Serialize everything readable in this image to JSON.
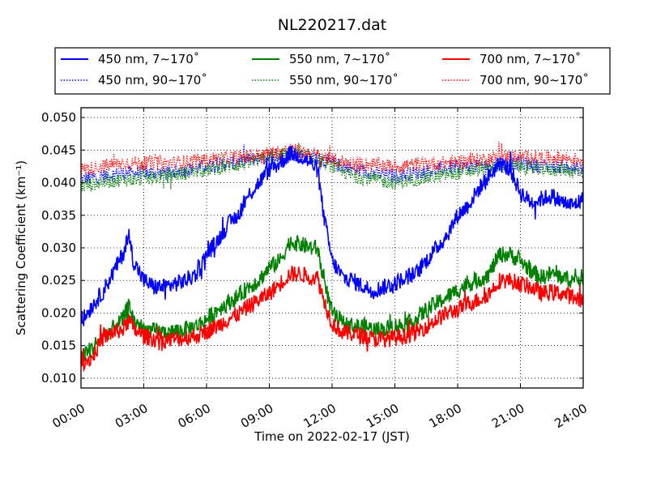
{
  "chart_data": {
    "type": "line",
    "title": "NL220217.dat",
    "xlabel": "Time on 2022-02-17 (JST)",
    "ylabel": "Scattering Coefficient (km⁻¹)",
    "x_unit": "hours",
    "xlim": [
      0,
      24
    ],
    "ylim": [
      0.0085,
      0.0515
    ],
    "x_ticks": [
      "00:00",
      "03:00",
      "06:00",
      "09:00",
      "12:00",
      "15:00",
      "18:00",
      "21:00",
      "24:00"
    ],
    "y_ticks": [
      "0.010",
      "0.015",
      "0.020",
      "0.025",
      "0.030",
      "0.035",
      "0.040",
      "0.045",
      "0.050"
    ],
    "grid": true,
    "legend_position": "top (above plot)",
    "series": [
      {
        "name": "450 nm, 7∼170˚",
        "color": "#0000ff",
        "style": "solid",
        "x": [
          0,
          0.5,
          1,
          1.5,
          2,
          2.3,
          2.5,
          3,
          3.5,
          4,
          4.5,
          5,
          5.5,
          6,
          6.5,
          7,
          7.5,
          8,
          8.5,
          9,
          9.5,
          10,
          10.5,
          11,
          11.3,
          11.6,
          12,
          12.5,
          13,
          13.5,
          14,
          14.5,
          15,
          15.5,
          16,
          16.5,
          17,
          17.5,
          18,
          18.5,
          19,
          19.5,
          20,
          20.5,
          21,
          21.5,
          22,
          22.5,
          23,
          23.5,
          24
        ],
        "y": [
          0.0185,
          0.021,
          0.023,
          0.026,
          0.029,
          0.032,
          0.028,
          0.025,
          0.024,
          0.024,
          0.0245,
          0.025,
          0.026,
          0.029,
          0.031,
          0.0335,
          0.035,
          0.038,
          0.04,
          0.042,
          0.043,
          0.0445,
          0.044,
          0.043,
          0.042,
          0.035,
          0.028,
          0.0255,
          0.025,
          0.024,
          0.0235,
          0.024,
          0.0245,
          0.0255,
          0.026,
          0.028,
          0.03,
          0.032,
          0.035,
          0.0365,
          0.039,
          0.041,
          0.043,
          0.042,
          0.0385,
          0.037,
          0.0375,
          0.038,
          0.037,
          0.0365,
          0.0375
        ]
      },
      {
        "name": "450 nm, 90∼170˚",
        "color": "#0000ff",
        "style": "dotted",
        "x": [
          0,
          1,
          2,
          3,
          4,
          5,
          6,
          7,
          8,
          9,
          10,
          11,
          12,
          13,
          14,
          15,
          16,
          17,
          18,
          19,
          20,
          21,
          22,
          23,
          24
        ],
        "y": [
          0.0405,
          0.041,
          0.0415,
          0.0415,
          0.0415,
          0.042,
          0.0425,
          0.043,
          0.0435,
          0.044,
          0.0445,
          0.044,
          0.043,
          0.042,
          0.0415,
          0.041,
          0.0415,
          0.042,
          0.0425,
          0.0425,
          0.043,
          0.043,
          0.0425,
          0.0425,
          0.042
        ]
      },
      {
        "name": "550 nm, 7∼170˚",
        "color": "#008000",
        "style": "solid",
        "x": [
          0,
          0.5,
          1,
          1.5,
          2,
          2.3,
          2.5,
          3,
          3.5,
          4,
          4.5,
          5,
          5.5,
          6,
          6.5,
          7,
          7.5,
          8,
          8.5,
          9,
          9.5,
          10,
          10.5,
          11,
          11.3,
          11.6,
          12,
          12.5,
          13,
          13.5,
          14,
          14.5,
          15,
          15.5,
          16,
          16.5,
          17,
          17.5,
          18,
          18.5,
          19,
          19.5,
          20,
          20.5,
          21,
          21.5,
          22,
          22.5,
          23,
          23.5,
          24
        ],
        "y": [
          0.0135,
          0.0145,
          0.0165,
          0.0175,
          0.019,
          0.0215,
          0.019,
          0.0175,
          0.0172,
          0.017,
          0.0172,
          0.0175,
          0.018,
          0.019,
          0.0205,
          0.0215,
          0.0225,
          0.024,
          0.025,
          0.027,
          0.028,
          0.031,
          0.0305,
          0.03,
          0.03,
          0.025,
          0.02,
          0.0185,
          0.018,
          0.018,
          0.0175,
          0.0175,
          0.018,
          0.0182,
          0.019,
          0.0205,
          0.0215,
          0.0225,
          0.0235,
          0.0245,
          0.025,
          0.026,
          0.029,
          0.029,
          0.028,
          0.0265,
          0.0255,
          0.026,
          0.0255,
          0.025,
          0.0255
        ]
      },
      {
        "name": "550 nm, 90∼170˚",
        "color": "#008000",
        "style": "dotted",
        "x": [
          0,
          1,
          2,
          3,
          4,
          5,
          6,
          7,
          8,
          9,
          10,
          11,
          12,
          13,
          14,
          15,
          16,
          17,
          18,
          19,
          20,
          21,
          22,
          23,
          24
        ],
        "y": [
          0.0395,
          0.04,
          0.0405,
          0.0405,
          0.041,
          0.0415,
          0.042,
          0.0425,
          0.043,
          0.044,
          0.0445,
          0.044,
          0.0425,
          0.041,
          0.0405,
          0.04,
          0.0405,
          0.041,
          0.0415,
          0.042,
          0.0425,
          0.0425,
          0.042,
          0.042,
          0.0415
        ]
      },
      {
        "name": "700 nm, 7∼170˚",
        "color": "#ff0000",
        "style": "solid",
        "x": [
          0,
          0.5,
          1,
          1.5,
          2,
          2.3,
          2.5,
          3,
          3.5,
          4,
          4.5,
          5,
          5.5,
          6,
          6.5,
          7,
          7.5,
          8,
          8.5,
          9,
          9.5,
          10,
          10.5,
          11,
          11.3,
          11.6,
          12,
          12.5,
          13,
          13.5,
          14,
          14.5,
          15,
          15.5,
          16,
          16.5,
          17,
          17.5,
          18,
          18.5,
          19,
          19.5,
          20,
          20.5,
          21,
          21.5,
          22,
          22.5,
          23,
          23.5,
          24
        ],
        "y": [
          0.0125,
          0.013,
          0.016,
          0.017,
          0.0175,
          0.019,
          0.0175,
          0.0165,
          0.016,
          0.0158,
          0.016,
          0.0162,
          0.0165,
          0.0172,
          0.018,
          0.019,
          0.0198,
          0.021,
          0.022,
          0.023,
          0.0245,
          0.026,
          0.026,
          0.0255,
          0.0255,
          0.022,
          0.0185,
          0.017,
          0.0168,
          0.0165,
          0.016,
          0.016,
          0.0162,
          0.0165,
          0.017,
          0.018,
          0.019,
          0.02,
          0.0205,
          0.0215,
          0.022,
          0.023,
          0.025,
          0.025,
          0.0245,
          0.024,
          0.023,
          0.0232,
          0.023,
          0.0225,
          0.022
        ]
      },
      {
        "name": "700 nm, 90∼170˚",
        "color": "#ff0000",
        "style": "dotted",
        "x": [
          0,
          1,
          2,
          3,
          4,
          5,
          6,
          7,
          8,
          9,
          10,
          11,
          12,
          13,
          14,
          15,
          16,
          17,
          18,
          19,
          20,
          21,
          22,
          23,
          24
        ],
        "y": [
          0.042,
          0.0425,
          0.043,
          0.043,
          0.043,
          0.0432,
          0.0435,
          0.0438,
          0.044,
          0.0445,
          0.045,
          0.0445,
          0.0435,
          0.043,
          0.0428,
          0.0425,
          0.0428,
          0.043,
          0.0432,
          0.0435,
          0.044,
          0.044,
          0.0438,
          0.0438,
          0.0435
        ]
      }
    ]
  }
}
